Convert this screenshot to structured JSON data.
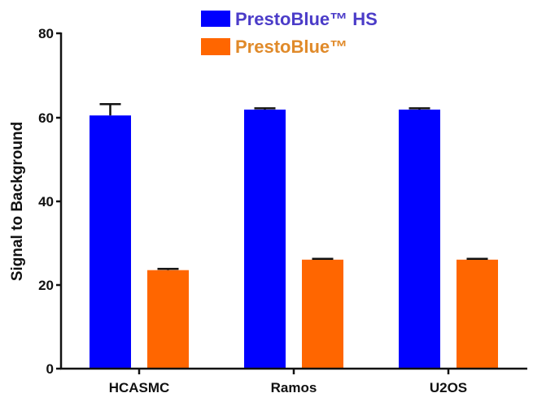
{
  "chart_data": {
    "type": "bar",
    "title": "",
    "xlabel": "",
    "ylabel": "Signal to Background",
    "ylim": [
      0,
      80
    ],
    "yticks": [
      0,
      20,
      40,
      60,
      80
    ],
    "grid": false,
    "legend_position": "top-center",
    "categories": [
      "HCASMC",
      "Ramos",
      "U2OS"
    ],
    "series": [
      {
        "name": "PrestoBlue™ HS",
        "color": "#0000ff",
        "text_color": "#4b3cc8",
        "values": [
          60.4,
          61.8,
          61.8
        ],
        "errors": [
          2.7,
          0.3,
          0.3
        ]
      },
      {
        "name": "PrestoBlue™",
        "color": "#ff6600",
        "text_color": "#e08a2a",
        "values": [
          23.5,
          26.0,
          26.0
        ],
        "errors": [
          0.3,
          0.2,
          0.2
        ]
      }
    ]
  },
  "legend": {
    "items": [
      {
        "label": "PrestoBlue™ HS"
      },
      {
        "label": "PrestoBlue™"
      }
    ]
  },
  "axes": {
    "y_label": "Signal to Background",
    "y_tick_labels": [
      "0",
      "20",
      "40",
      "60",
      "80"
    ],
    "x_tick_labels": [
      "HCASMC",
      "Ramos",
      "U2OS"
    ]
  }
}
